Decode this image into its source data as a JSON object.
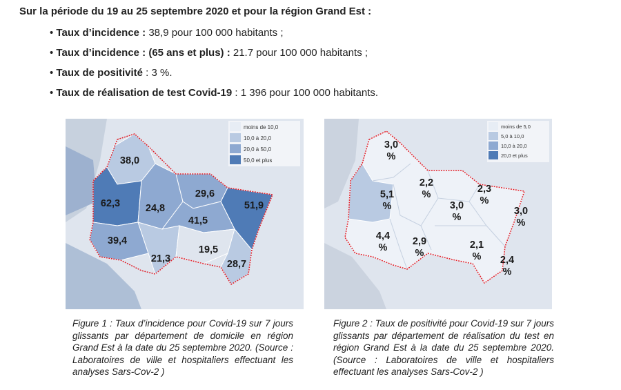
{
  "header": "Sur la période du 19 au 25 septembre 2020 et pour la région Grand Est :",
  "bullets": [
    {
      "label": "Taux d’incidence :",
      "text": " 38,9 pour 100 000 habitants ;"
    },
    {
      "label": "Taux d’incidence : (65 ans et plus) :",
      "text": " 21.7 pour 100 000 habitants ;"
    },
    {
      "label": "Taux de positivité",
      "text": " : 3 %."
    },
    {
      "label": "Taux de réalisation de test Covid-19",
      "text": " : 1 396 pour 100 000 habitants."
    }
  ],
  "map1": {
    "legend": [
      "moins de 10,0",
      "10,0 à 20,0",
      "20,0 à 50,0",
      "50,0 et plus"
    ],
    "legend_colors": [
      "#e7edf5",
      "#b9cae2",
      "#8ea9d1",
      "#4f7bb6"
    ],
    "values": [
      "38,0",
      "62,3",
      "24,8",
      "29,6",
      "51,9",
      "41,5",
      "39,4",
      "21,3",
      "19,5",
      "28,7"
    ]
  },
  "map2": {
    "legend": [
      "moins de 5,0",
      "5,0 à 10,0",
      "10,0 à 20,0",
      "20,0 et plus"
    ],
    "legend_colors": [
      "#e7edf5",
      "#b9cae2",
      "#8ea9d1",
      "#4f7bb6"
    ],
    "values": [
      "3,0",
      "5,1",
      "2,2",
      "2,3",
      "3,0",
      "3,0",
      "4,4",
      "2,9",
      "2,1",
      "2,4"
    ],
    "unit": "%"
  },
  "captions": {
    "fig1": "Figure 1 : Taux d’incidence pour Covid-19 sur 7 jours glissants par département de domicile en région Grand Est à la date du 25 septembre 2020. (Source : Laboratoires de ville et hospitaliers effectuant les analyses Sars-Cov-2 )",
    "fig2": "Figure 2 : Taux de positivité pour Covid-19 sur 7 jours glissants par département de réalisation du test en région Grand Est à la date du 25 septembre 2020. (Source : Laboratoires de ville et hospitaliers effectuant les analyses Sars-Cov-2 )"
  }
}
